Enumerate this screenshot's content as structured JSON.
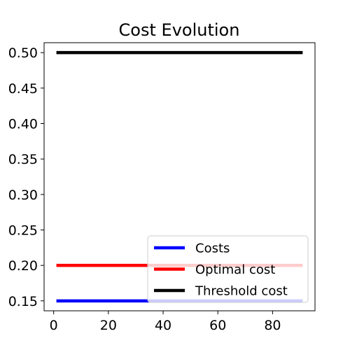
{
  "chart_data": {
    "type": "line",
    "title": "Cost Evolution",
    "xlabel": "",
    "ylabel": "",
    "xlim": [
      -3.5,
      95.5
    ],
    "ylim": [
      0.136,
      0.514
    ],
    "xticks": [
      0,
      20,
      40,
      60,
      80
    ],
    "xtick_labels": [
      "0",
      "20",
      "40",
      "60",
      "80"
    ],
    "yticks": [
      0.15,
      0.2,
      0.25,
      0.3,
      0.35,
      0.4,
      0.45,
      0.5
    ],
    "ytick_labels": [
      "0.15",
      "0.20",
      "0.25",
      "0.30",
      "0.35",
      "0.40",
      "0.45",
      "0.50"
    ],
    "grid": false,
    "legend_position": "lower-right",
    "series": [
      {
        "name": "Costs",
        "color": "#0000ff",
        "x": [
          1,
          91
        ],
        "y": [
          0.15,
          0.15
        ]
      },
      {
        "name": "Optimal cost",
        "color": "#ff0000",
        "x": [
          1,
          91
        ],
        "y": [
          0.2,
          0.2
        ]
      },
      {
        "name": "Threshold cost",
        "color": "#000000",
        "x": [
          1,
          91
        ],
        "y": [
          0.5,
          0.5
        ]
      }
    ]
  }
}
